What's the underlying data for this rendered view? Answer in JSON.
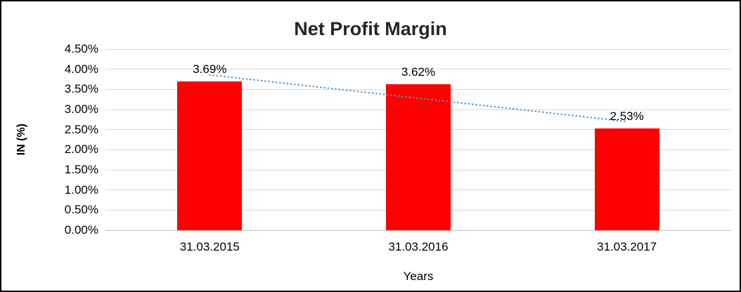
{
  "chart_data": {
    "type": "bar",
    "title": "Net Profit Margin",
    "categories": [
      "31.03.2015",
      "31.03.2016",
      "31.03.2017"
    ],
    "values": [
      3.69,
      3.62,
      2.53
    ],
    "data_labels": [
      "3.69%",
      "3.62%",
      "2.53%"
    ],
    "xlabel": "Years",
    "ylabel": "IN (%)",
    "ylim": [
      0,
      4.5
    ],
    "ytick_step": 0.5,
    "ytick_labels": [
      "0.00%",
      "0.50%",
      "1.00%",
      "1.50%",
      "2.00%",
      "2.50%",
      "3.00%",
      "3.50%",
      "4.00%",
      "4.50%"
    ],
    "grid": true,
    "legend": false,
    "bar_color": "#ff0000",
    "gridline_color": "#d9d9d9",
    "trendline": {
      "type": "linear",
      "style": "dotted",
      "color": "#4f93c8"
    }
  }
}
